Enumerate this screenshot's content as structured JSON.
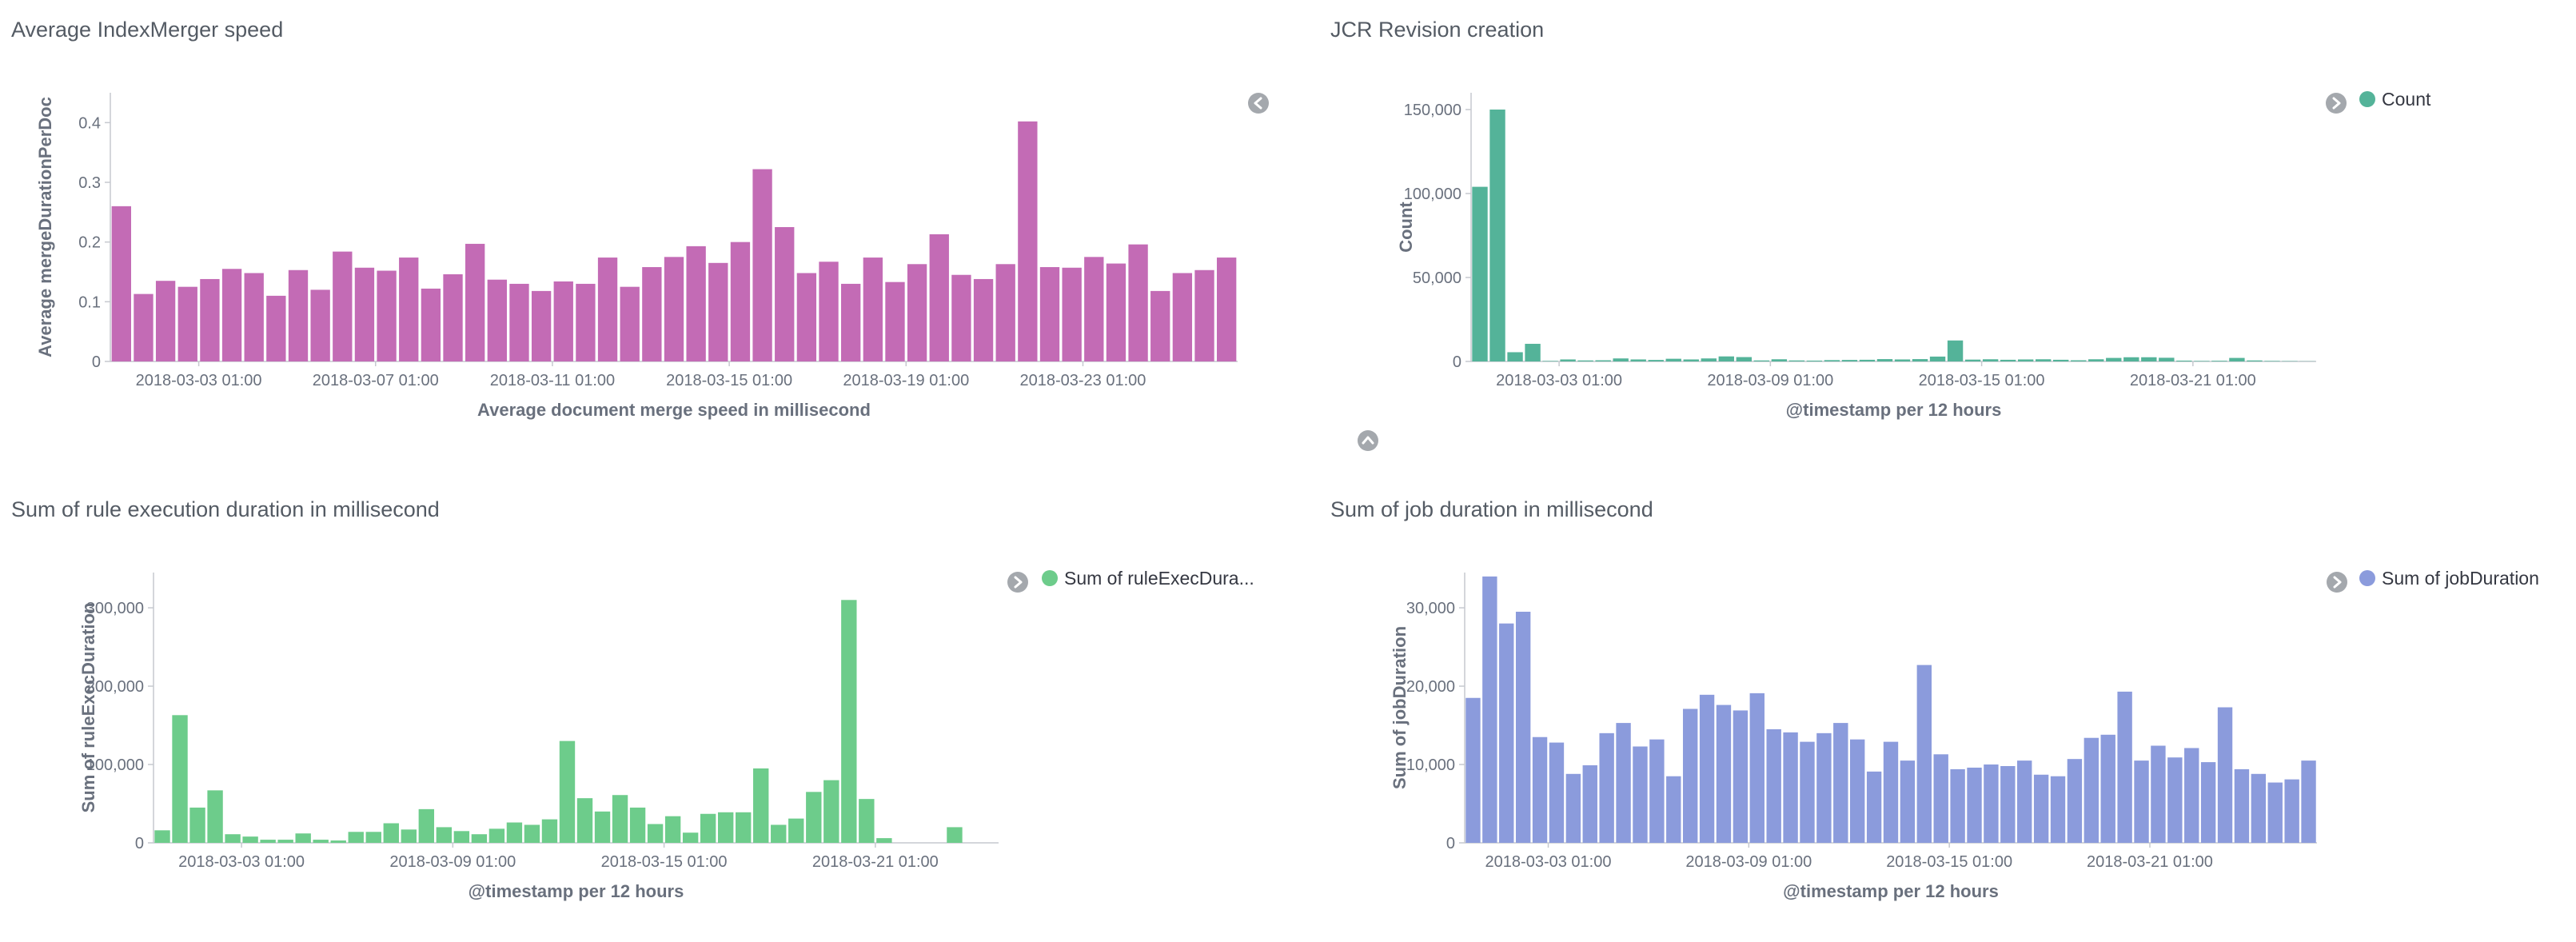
{
  "colors": {
    "axis": "#c6c9cf",
    "toggle": "#a4a8ad",
    "toggle_glyph": "#ffffff"
  },
  "panels": [
    {
      "id": "merge-speed",
      "title": "Average IndexMerger speed",
      "legend_visible": false,
      "legend_toggle_icon": "chevron-left-icon",
      "chart_data": {
        "type": "bar",
        "color": "#c36bb5",
        "xlabel": "Average document merge speed in millisecond",
        "ylabel": "Average mergeDurationPerDoc",
        "ylim": [
          0,
          0.45
        ],
        "yticks": [
          0,
          0.1,
          0.2,
          0.3,
          0.4
        ],
        "ytick_labels": [
          "0",
          "0.1",
          "0.2",
          "0.3",
          "0.4"
        ],
        "xtick_labels": [
          "2018-03-03 01:00",
          "2018-03-07 01:00",
          "2018-03-11 01:00",
          "2018-03-15 01:00",
          "2018-03-19 01:00",
          "2018-03-23 01:00"
        ],
        "xtick_positions": [
          4,
          12,
          20,
          28,
          36,
          44
        ],
        "values": [
          0.26,
          0.113,
          0.135,
          0.125,
          0.138,
          0.155,
          0.148,
          0.11,
          0.153,
          0.12,
          0.184,
          0.157,
          0.152,
          0.174,
          0.122,
          0.146,
          0.197,
          0.137,
          0.13,
          0.118,
          0.134,
          0.13,
          0.174,
          0.125,
          0.158,
          0.175,
          0.193,
          0.165,
          0.2,
          0.322,
          0.225,
          0.148,
          0.167,
          0.13,
          0.174,
          0.133,
          0.163,
          0.213,
          0.145,
          0.138,
          0.163,
          0.402,
          0.158,
          0.157,
          0.175,
          0.164,
          0.196,
          0.118,
          0.148,
          0.153,
          0.174
        ]
      }
    },
    {
      "id": "jcr-revision",
      "title": "JCR Revision creation",
      "legend_visible": true,
      "legend_toggle_icon": "chevron-right-icon",
      "extra_toggle_icon": "chevron-up-icon",
      "chart_data": {
        "type": "bar",
        "color": "#54b399",
        "legend": "Count",
        "xlabel": "@timestamp per 12 hours",
        "ylabel": "Count",
        "ylim": [
          0,
          160000
        ],
        "yticks": [
          0,
          50000,
          100000,
          150000
        ],
        "ytick_labels": [
          "0",
          "50,000",
          "100,000",
          "150,000"
        ],
        "xtick_labels": [
          "2018-03-03 01:00",
          "2018-03-09 01:00",
          "2018-03-15 01:00",
          "2018-03-21 01:00"
        ],
        "xtick_positions": [
          5,
          17,
          29,
          41
        ],
        "values": [
          104000,
          150000,
          5500,
          10500,
          300,
          1200,
          600,
          700,
          1800,
          1200,
          900,
          1600,
          1200,
          1800,
          3000,
          2600,
          600,
          1300,
          600,
          500,
          800,
          900,
          1000,
          1400,
          1200,
          1400,
          2900,
          12500,
          1100,
          1300,
          1000,
          1200,
          1300,
          1000,
          700,
          1300,
          2100,
          2500,
          2500,
          2200,
          500,
          300,
          400,
          2100,
          600,
          300,
          200,
          100
        ]
      }
    },
    {
      "id": "rule-exec",
      "title": "Sum of rule execution duration in millisecond",
      "legend_visible": true,
      "legend_toggle_icon": "chevron-right-icon",
      "chart_data": {
        "type": "bar",
        "color": "#6dcc8b",
        "legend": "Sum of ruleExecDura...",
        "xlabel": "@timestamp per 12 hours",
        "ylabel": "Sum of ruleExecDuration",
        "ylim": [
          0,
          345000
        ],
        "yticks": [
          0,
          100000,
          200000,
          300000
        ],
        "ytick_labels": [
          "0",
          "100,000",
          "200,000",
          "300,000"
        ],
        "xtick_labels": [
          "2018-03-03 01:00",
          "2018-03-09 01:00",
          "2018-03-15 01:00",
          "2018-03-21 01:00"
        ],
        "xtick_positions": [
          5,
          17,
          29,
          41
        ],
        "values": [
          16000,
          163000,
          45000,
          67000,
          11000,
          8000,
          4000,
          4000,
          12000,
          4000,
          3000,
          14000,
          14000,
          25000,
          17000,
          43000,
          20000,
          15000,
          11000,
          18000,
          26000,
          23000,
          30000,
          130000,
          57000,
          40000,
          61000,
          45000,
          24000,
          34000,
          13000,
          37000,
          39000,
          39000,
          95000,
          23000,
          31000,
          65000,
          80000,
          310000,
          56000,
          6000,
          0,
          0,
          0,
          20000
        ]
      }
    },
    {
      "id": "job-duration",
      "title": "Sum of job duration in millisecond",
      "legend_visible": true,
      "legend_toggle_icon": "chevron-right-icon",
      "chart_data": {
        "type": "bar",
        "color": "#8b9bdc",
        "legend": "Sum of jobDuration",
        "xlabel": "@timestamp per 12 hours",
        "ylabel": "Sum of jobDuration",
        "ylim": [
          0,
          34500
        ],
        "yticks": [
          0,
          10000,
          20000,
          30000
        ],
        "ytick_labels": [
          "0",
          "10,000",
          "20,000",
          "30,000"
        ],
        "xtick_labels": [
          "2018-03-03 01:00",
          "2018-03-09 01:00",
          "2018-03-15 01:00",
          "2018-03-21 01:00"
        ],
        "xtick_positions": [
          5,
          17,
          29,
          41
        ],
        "values": [
          18500,
          34000,
          28000,
          29500,
          13500,
          12800,
          8800,
          9900,
          14000,
          15300,
          12300,
          13200,
          8500,
          17100,
          18900,
          17600,
          16900,
          19100,
          14500,
          14100,
          12900,
          14000,
          15300,
          13200,
          9100,
          12900,
          10500,
          22700,
          11300,
          9400,
          9600,
          10000,
          9800,
          10500,
          8700,
          8500,
          10700,
          13400,
          13800,
          19300,
          10500,
          12400,
          10900,
          12100,
          10300,
          17300,
          9400,
          8800,
          7700,
          8100,
          10500
        ]
      }
    }
  ]
}
